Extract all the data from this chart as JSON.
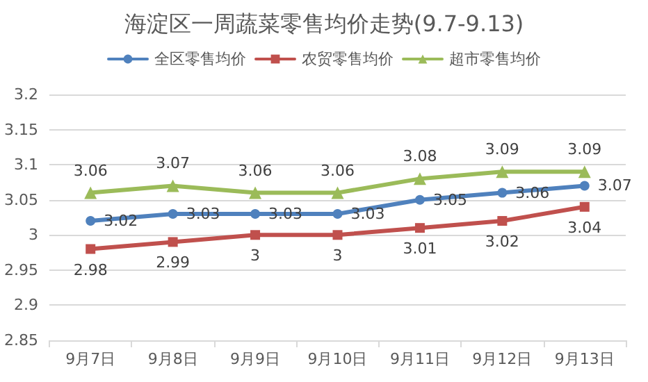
{
  "chart_data": {
    "type": "line",
    "title": "海淀区一周蔬菜零售均价走势(9.7-9.13)",
    "categories": [
      "9月7日",
      "9月8日",
      "9月9日",
      "9月10日",
      "9月11日",
      "9月12日",
      "9月13日"
    ],
    "series": [
      {
        "name": "全区零售均价",
        "color": "#4f81bd",
        "marker": "circle",
        "values": [
          3.02,
          3.03,
          3.03,
          3.03,
          3.05,
          3.06,
          3.07
        ]
      },
      {
        "name": "农贸零售均价",
        "color": "#c0504d",
        "marker": "square",
        "values": [
          2.98,
          2.99,
          3,
          3,
          3.01,
          3.02,
          3.04
        ]
      },
      {
        "name": "超市零售均价",
        "color": "#9bbb59",
        "marker": "triangle",
        "values": [
          3.06,
          3.07,
          3.06,
          3.06,
          3.08,
          3.09,
          3.09
        ]
      }
    ],
    "ylim": [
      2.85,
      3.2
    ],
    "yticks": [
      2.85,
      2.9,
      2.95,
      3,
      3.05,
      3.1,
      3.15,
      3.2
    ],
    "grid": "y",
    "legend": "top",
    "data_labels": true,
    "line_style": "solid"
  }
}
